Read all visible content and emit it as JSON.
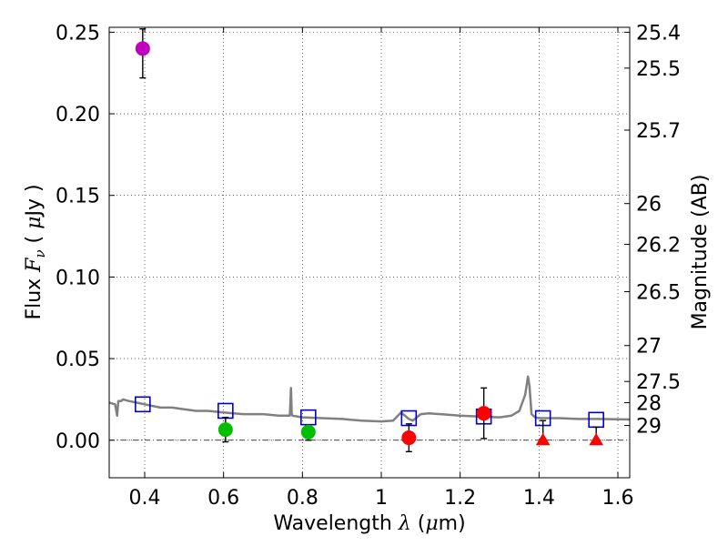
{
  "chart_data": {
    "type": "scatter",
    "xlabel_prefix": "Wavelength  ",
    "xlabel_symbol": "λ",
    "xlabel_unit_open": " (",
    "xlabel_unit_mu": "μ",
    "xlabel_unit_close": "m)",
    "ylabel_prefix": "Flux  ",
    "ylabel_symbol": "F",
    "ylabel_subscript": "ν",
    "ylabel_unit_open": "  ( ",
    "ylabel_unit_mu": "μ",
    "ylabel_unit_close": "Jy )",
    "y2label": "Magnitude (AB)",
    "xlim": [
      0.31,
      1.63
    ],
    "ylim": [
      -0.023,
      0.253
    ],
    "grid": true,
    "x_ticks": [
      0.4,
      0.6,
      0.8,
      1.0,
      1.2,
      1.4,
      1.6
    ],
    "x_tick_labels": [
      "0.4",
      "0.6",
      "0.8",
      "1",
      "1.2",
      "1.4",
      "1.6"
    ],
    "y_ticks": [
      0.0,
      0.05,
      0.1,
      0.15,
      0.2,
      0.25
    ],
    "y_tick_labels": [
      "0.00",
      "0.05",
      "0.10",
      "0.15",
      "0.20",
      "0.25"
    ],
    "y2_ticks": [
      {
        "label": "25.4",
        "flux": 0.25
      },
      {
        "label": "25.5",
        "flux": 0.228
      },
      {
        "label": "25.7",
        "flux": 0.19
      },
      {
        "label": "26",
        "flux": 0.145
      },
      {
        "label": "26.2",
        "flux": 0.12
      },
      {
        "label": "26.5",
        "flux": 0.091
      },
      {
        "label": "27",
        "flux": 0.058
      },
      {
        "label": "27.5",
        "flux": 0.036
      },
      {
        "label": "28",
        "flux": 0.023
      },
      {
        "label": "29",
        "flux": 0.009
      }
    ],
    "series": [
      {
        "name": "model spectrum",
        "kind": "line",
        "color": "#808080",
        "x": [
          0.31,
          0.325,
          0.33,
          0.333,
          0.337,
          0.34,
          0.345,
          0.36,
          0.38,
          0.4,
          0.42,
          0.44,
          0.47,
          0.5,
          0.53,
          0.56,
          0.6,
          0.65,
          0.7,
          0.74,
          0.768,
          0.771,
          0.773,
          0.775,
          0.8,
          0.85,
          0.9,
          0.95,
          1.0,
          1.03,
          1.05,
          1.07,
          1.08,
          1.1,
          1.12,
          1.15,
          1.2,
          1.25,
          1.3,
          1.33,
          1.35,
          1.365,
          1.372,
          1.376,
          1.381,
          1.39,
          1.4,
          1.45,
          1.5,
          1.55,
          1.6,
          1.63
        ],
        "y": [
          0.023,
          0.022,
          0.015,
          0.024,
          0.024,
          0.024,
          0.025,
          0.024,
          0.023,
          0.022,
          0.021,
          0.02,
          0.02,
          0.019,
          0.018,
          0.018,
          0.017,
          0.016,
          0.016,
          0.015,
          0.015,
          0.032,
          0.016,
          0.015,
          0.014,
          0.0135,
          0.013,
          0.012,
          0.0115,
          0.012,
          0.017,
          0.013,
          0.012,
          0.016,
          0.0165,
          0.016,
          0.015,
          0.0145,
          0.014,
          0.015,
          0.018,
          0.028,
          0.039,
          0.033,
          0.016,
          0.014,
          0.0135,
          0.0135,
          0.013,
          0.013,
          0.0128,
          0.0127
        ]
      },
      {
        "name": "model photometry",
        "kind": "open-square",
        "color": "#0000cc",
        "x": [
          0.395,
          0.605,
          0.815,
          1.07,
          1.26,
          1.41,
          1.545
        ],
        "y": [
          0.022,
          0.018,
          0.014,
          0.0135,
          0.0145,
          0.0135,
          0.0125
        ]
      },
      {
        "name": "violet detection",
        "kind": "circle",
        "color": "#bf00bf",
        "x": [
          0.395
        ],
        "y": [
          0.24
        ],
        "yerr_low": [
          0.222
        ],
        "yerr_high": [
          0.252
        ]
      },
      {
        "name": "green detections",
        "kind": "circle",
        "color": "#00bf00",
        "x": [
          0.605,
          0.815
        ],
        "y": [
          0.0065,
          0.005
        ],
        "yerr_low": [
          -0.001,
          0.0
        ],
        "yerr_high": [
          0.014,
          0.009
        ]
      },
      {
        "name": "red detections",
        "kind": "circle",
        "color": "#ff0000",
        "x": [
          1.07,
          1.26
        ],
        "y": [
          0.0015,
          0.0165
        ],
        "yerr_low": [
          -0.007,
          0.001
        ],
        "yerr_high": [
          0.01,
          0.032
        ]
      },
      {
        "name": "red upper limits",
        "kind": "triangle",
        "color": "#ff0000",
        "x": [
          1.41,
          1.545
        ],
        "y": [
          0.0,
          0.0
        ],
        "yerr_low": [
          0.0,
          0.0
        ],
        "yerr_high": [
          0.012,
          0.008
        ]
      }
    ]
  }
}
